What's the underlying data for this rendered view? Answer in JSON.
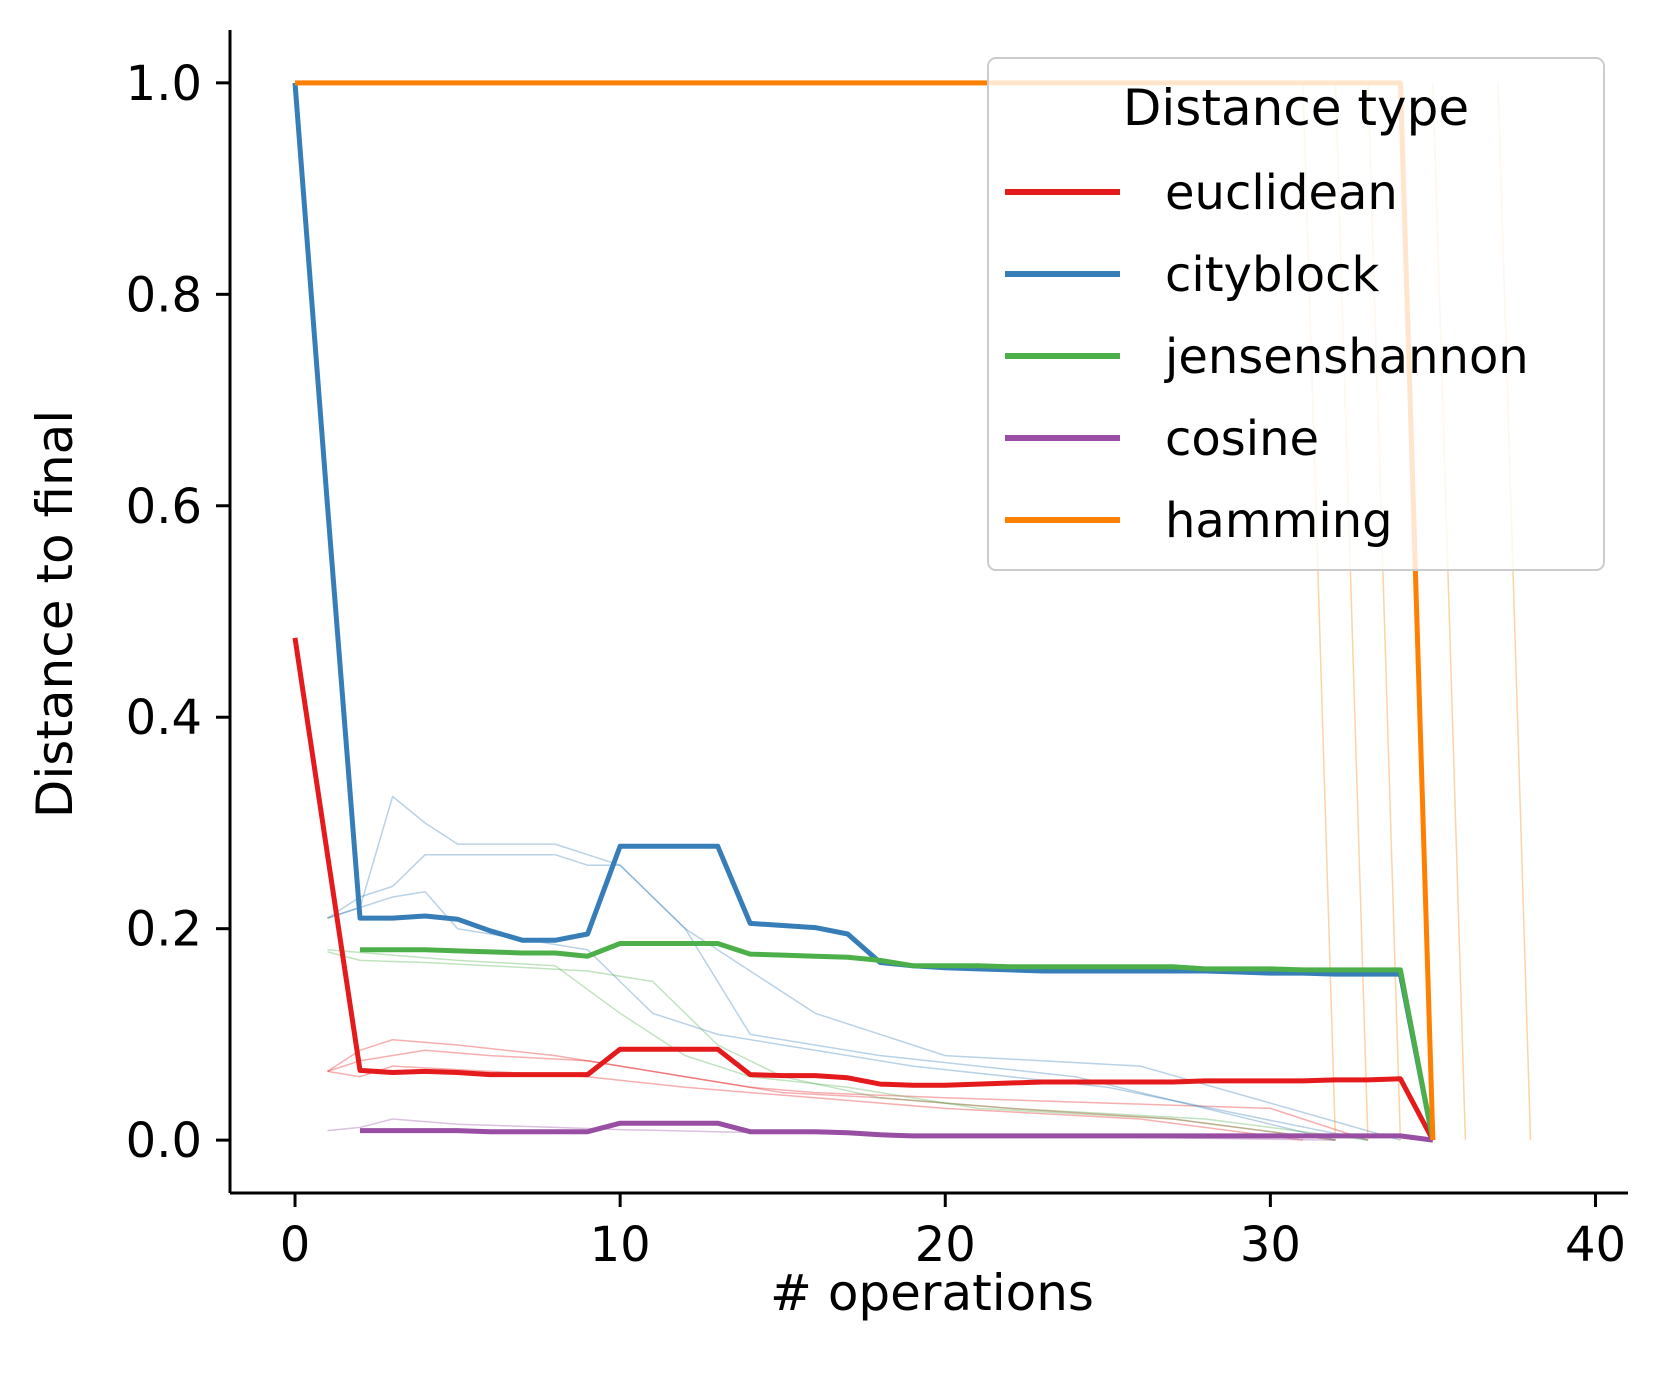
{
  "chart_data": {
    "type": "line",
    "title": "",
    "xlabel": "# operations",
    "ylabel": "Distance to final",
    "xlim": [
      -2,
      41
    ],
    "ylim": [
      -0.05,
      1.05
    ],
    "xticks": [
      0,
      10,
      20,
      30,
      40
    ],
    "xtick_labels": [
      "0",
      "10",
      "20",
      "30",
      "40"
    ],
    "yticks": [
      0.0,
      0.2,
      0.4,
      0.6,
      0.8,
      1.0
    ],
    "ytick_labels": [
      "0.0",
      "0.2",
      "0.4",
      "0.6",
      "0.8",
      "1.0"
    ],
    "grid": false,
    "legend": {
      "title": "Distance type",
      "position": "top-right"
    },
    "series": [
      {
        "name": "euclidean",
        "color": "#e41a1c",
        "x": [
          0,
          1,
          2,
          3,
          4,
          5,
          6,
          7,
          8,
          9,
          10,
          11,
          12,
          13,
          14,
          15,
          16,
          17,
          18,
          19,
          20,
          21,
          22,
          23,
          24,
          25,
          26,
          27,
          28,
          29,
          30,
          31,
          32,
          33,
          34,
          35
        ],
        "values": [
          0.475,
          0.27,
          0.066,
          0.064,
          0.065,
          0.064,
          0.062,
          0.062,
          0.062,
          0.062,
          0.086,
          0.086,
          0.086,
          0.086,
          0.062,
          0.061,
          0.061,
          0.059,
          0.053,
          0.052,
          0.052,
          0.053,
          0.054,
          0.055,
          0.055,
          0.055,
          0.055,
          0.055,
          0.056,
          0.056,
          0.056,
          0.056,
          0.057,
          0.057,
          0.058,
          0.0
        ]
      },
      {
        "name": "cityblock",
        "color": "#377eb8",
        "x": [
          0,
          1,
          2,
          3,
          4,
          5,
          6,
          7,
          8,
          9,
          10,
          11,
          12,
          13,
          14,
          15,
          16,
          17,
          18,
          19,
          20,
          21,
          22,
          23,
          24,
          25,
          26,
          27,
          28,
          29,
          30,
          31,
          32,
          33,
          34,
          35
        ],
        "values": [
          1.0,
          0.6,
          0.21,
          0.21,
          0.212,
          0.209,
          0.198,
          0.189,
          0.189,
          0.195,
          0.278,
          0.278,
          0.278,
          0.278,
          0.205,
          0.203,
          0.201,
          0.195,
          0.168,
          0.165,
          0.163,
          0.162,
          0.161,
          0.16,
          0.16,
          0.16,
          0.16,
          0.16,
          0.16,
          0.159,
          0.158,
          0.158,
          0.157,
          0.157,
          0.157,
          0.0
        ]
      },
      {
        "name": "jensenshannon",
        "color": "#4daf4a",
        "x": [
          2,
          3,
          4,
          5,
          6,
          7,
          8,
          9,
          10,
          11,
          12,
          13,
          14,
          15,
          16,
          17,
          18,
          19,
          20,
          21,
          22,
          23,
          24,
          25,
          26,
          27,
          28,
          29,
          30,
          31,
          32,
          33,
          34,
          35
        ],
        "values": [
          0.18,
          0.18,
          0.18,
          0.179,
          0.178,
          0.177,
          0.177,
          0.174,
          0.186,
          0.186,
          0.186,
          0.186,
          0.176,
          0.175,
          0.174,
          0.173,
          0.17,
          0.165,
          0.165,
          0.165,
          0.164,
          0.164,
          0.164,
          0.164,
          0.164,
          0.164,
          0.162,
          0.162,
          0.162,
          0.161,
          0.161,
          0.161,
          0.161,
          0.0
        ]
      },
      {
        "name": "cosine",
        "color": "#984ea3",
        "x": [
          2,
          3,
          4,
          5,
          6,
          7,
          8,
          9,
          10,
          11,
          12,
          13,
          14,
          15,
          16,
          17,
          18,
          19,
          20,
          21,
          22,
          23,
          24,
          25,
          26,
          27,
          28,
          29,
          30,
          31,
          32,
          33,
          34,
          35
        ],
        "values": [
          0.009,
          0.009,
          0.009,
          0.009,
          0.008,
          0.008,
          0.008,
          0.008,
          0.016,
          0.016,
          0.016,
          0.016,
          0.008,
          0.008,
          0.008,
          0.007,
          0.005,
          0.004,
          0.004,
          0.004,
          0.004,
          0.004,
          0.004,
          0.004,
          0.004,
          0.004,
          0.004,
          0.004,
          0.004,
          0.004,
          0.004,
          0.004,
          0.004,
          0.0
        ]
      },
      {
        "name": "hamming",
        "color": "#ff7f00",
        "x": [
          0,
          34,
          35
        ],
        "values": [
          1.0,
          1.0,
          0.0
        ]
      }
    ],
    "thin_runs": {
      "euclidean": [
        {
          "x": [
            1,
            2,
            3,
            5,
            8,
            10,
            12,
            14,
            16,
            20,
            25,
            30,
            33
          ],
          "values": [
            0.065,
            0.085,
            0.095,
            0.09,
            0.08,
            0.07,
            0.06,
            0.05,
            0.045,
            0.04,
            0.035,
            0.03,
            0.0
          ]
        },
        {
          "x": [
            1,
            2,
            4,
            6,
            9,
            11,
            13,
            15,
            18,
            22,
            27,
            32
          ],
          "values": [
            0.065,
            0.075,
            0.085,
            0.08,
            0.075,
            0.065,
            0.055,
            0.045,
            0.04,
            0.03,
            0.02,
            0.0
          ]
        },
        {
          "x": [
            1,
            2,
            3,
            6,
            9,
            12,
            16,
            20,
            26,
            31
          ],
          "values": [
            0.065,
            0.06,
            0.07,
            0.065,
            0.06,
            0.05,
            0.04,
            0.03,
            0.02,
            0.0
          ]
        }
      ],
      "cityblock": [
        {
          "x": [
            1,
            2,
            3,
            4,
            5,
            6,
            7,
            8,
            9,
            10,
            12,
            14,
            16,
            20,
            26,
            34
          ],
          "values": [
            0.21,
            0.22,
            0.325,
            0.3,
            0.28,
            0.28,
            0.28,
            0.28,
            0.27,
            0.26,
            0.2,
            0.16,
            0.12,
            0.08,
            0.07,
            0.0
          ]
        },
        {
          "x": [
            1,
            2,
            3,
            4,
            6,
            8,
            9,
            10,
            12,
            14,
            18,
            24,
            32
          ],
          "values": [
            0.21,
            0.23,
            0.24,
            0.27,
            0.27,
            0.27,
            0.26,
            0.26,
            0.2,
            0.1,
            0.08,
            0.06,
            0.0
          ]
        },
        {
          "x": [
            1,
            2,
            3,
            4,
            5,
            7,
            9,
            11,
            13,
            15,
            19,
            25,
            33
          ],
          "values": [
            0.21,
            0.22,
            0.23,
            0.235,
            0.2,
            0.19,
            0.18,
            0.12,
            0.1,
            0.09,
            0.07,
            0.05,
            0.0
          ]
        }
      ],
      "jensenshannon": [
        {
          "x": [
            1,
            2,
            4,
            6,
            9,
            11,
            13,
            15,
            18,
            22,
            28,
            33
          ],
          "values": [
            0.178,
            0.17,
            0.168,
            0.165,
            0.16,
            0.15,
            0.09,
            0.06,
            0.04,
            0.03,
            0.02,
            0.0
          ]
        },
        {
          "x": [
            1,
            3,
            5,
            8,
            10,
            12,
            14,
            17,
            21,
            27,
            32
          ],
          "values": [
            0.18,
            0.175,
            0.17,
            0.165,
            0.12,
            0.08,
            0.06,
            0.05,
            0.03,
            0.02,
            0.0
          ]
        }
      ],
      "cosine": [
        {
          "x": [
            1,
            2,
            3,
            5,
            8,
            10,
            13,
            18,
            25,
            32
          ],
          "values": [
            0.009,
            0.012,
            0.02,
            0.015,
            0.012,
            0.01,
            0.008,
            0.005,
            0.003,
            0.0
          ]
        }
      ],
      "hamming": [
        {
          "x": [
            31,
            32
          ],
          "values": [
            1.0,
            0.0
          ]
        },
        {
          "x": [
            32,
            33
          ],
          "values": [
            1.0,
            0.0
          ]
        },
        {
          "x": [
            33,
            34
          ],
          "values": [
            1.0,
            0.0
          ]
        },
        {
          "x": [
            35,
            36
          ],
          "values": [
            1.0,
            0.0
          ]
        },
        {
          "x": [
            37,
            38
          ],
          "values": [
            1.0,
            0.0
          ]
        }
      ]
    }
  }
}
